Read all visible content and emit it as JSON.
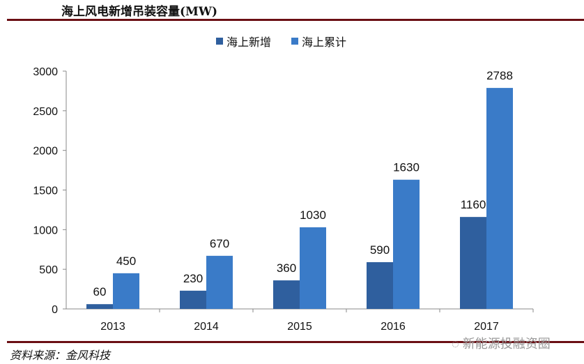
{
  "header": {
    "title": "海上风电新增吊装容量(MW)"
  },
  "footer": {
    "source": "资料来源：金风科技",
    "watermark": "新能源投融资圈"
  },
  "chart_data": {
    "type": "bar",
    "title": "海上风电新增吊装容量(MW)",
    "categories": [
      "2013",
      "2014",
      "2015",
      "2016",
      "2017"
    ],
    "series": [
      {
        "name": "海上新增",
        "values": [
          60,
          230,
          360,
          590,
          1160
        ],
        "color": "#2f5f9e"
      },
      {
        "name": "海上累计",
        "values": [
          450,
          670,
          1030,
          1630,
          2788
        ],
        "color": "#3a7bc8"
      }
    ],
    "ylim": [
      0,
      3000
    ],
    "yticks": [
      0,
      500,
      1000,
      1500,
      2000,
      2500,
      3000
    ],
    "grid": false,
    "legend": "top-center",
    "data_labels": true
  }
}
